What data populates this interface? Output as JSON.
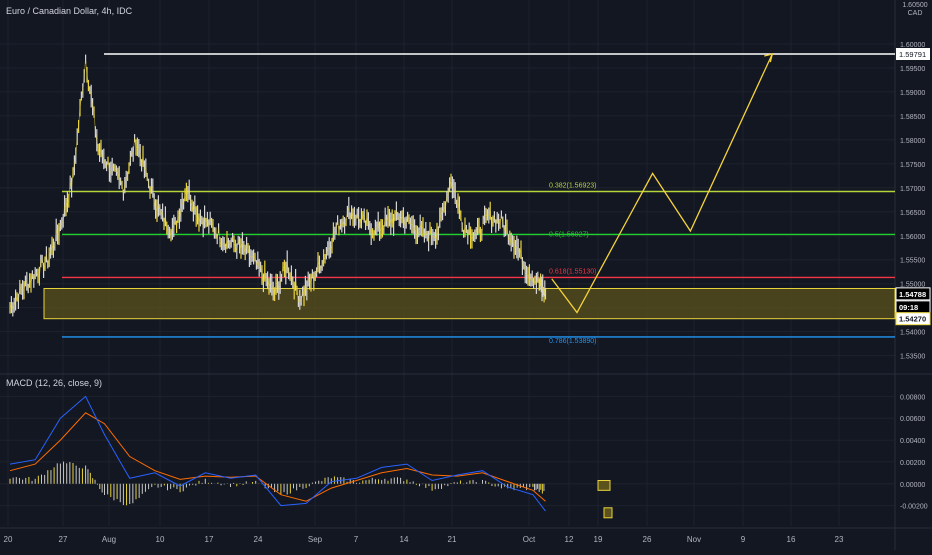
{
  "header": {
    "symbol_title": "Euro / Canadian Dollar, 4h, IDC",
    "scale_top": "1.60500",
    "currency": "CAD"
  },
  "macd": {
    "title": "MACD (12, 26, close, 9)"
  },
  "colors": {
    "background": "#131722",
    "grid": "#1e222d",
    "candle": "#d5d5d5",
    "candle_highlight": "#e8d43a",
    "zone_fill": "#5c531c",
    "zone_border": "#e8d43a",
    "red_level": "#f23645",
    "green_level": "#1fd12c",
    "lime_level": "#b6d43a",
    "blue_level": "#2196f3",
    "white_level": "#ffffff",
    "projection": "#f5d33b",
    "macd_line": "#2962ff",
    "signal_line": "#ff6d00",
    "histogram": "#c8c8c8",
    "histogram_highlight": "#e8d43a"
  },
  "chart_data": [
    {
      "type": "line",
      "name": "EUR/CAD 4h price",
      "ylim": [
        1.532,
        1.605
      ],
      "y_ticks": [
        "1.53500",
        "1.54000",
        "1.54500",
        "1.55000",
        "1.55500",
        "1.56000",
        "1.56500",
        "1.57000",
        "1.57500",
        "1.58000",
        "1.58500",
        "1.59000",
        "1.59500",
        "1.60000"
      ],
      "x_ticks": [
        "20",
        "27",
        "Aug",
        "10",
        "17",
        "24",
        "Sep",
        "7",
        "14",
        "21",
        "Oct",
        "12",
        "19",
        "26",
        "Nov",
        "9",
        "16",
        "23"
      ],
      "series": [
        {
          "x": [
            "Jul 20",
            "Jul 22",
            "Jul 24",
            "Jul 26",
            "Jul 28",
            "Jul 30",
            "Aug 1",
            "Aug 3",
            "Aug 5",
            "Aug 7",
            "Aug 9",
            "Aug 11",
            "Aug 13",
            "Aug 15",
            "Aug 17",
            "Aug 19",
            "Aug 21",
            "Aug 23",
            "Aug 25",
            "Aug 27",
            "Aug 29",
            "Aug 31",
            "Sep 2",
            "Sep 4",
            "Sep 6",
            "Sep 8",
            "Sep 10",
            "Sep 12",
            "Sep 14",
            "Sep 16",
            "Sep 18",
            "Sep 20",
            "Sep 22",
            "Sep 24",
            "Sep 26",
            "Sep 28",
            "Sep 30",
            "Oct 2",
            "Oct 4",
            "Oct 6",
            "Oct 8",
            "Oct 10",
            "Oct 12",
            "Oct 13"
          ],
          "values": [
            1.545,
            1.549,
            1.552,
            1.555,
            1.562,
            1.572,
            1.597,
            1.578,
            1.574,
            1.57,
            1.58,
            1.571,
            1.564,
            1.561,
            1.57,
            1.564,
            1.562,
            1.559,
            1.558,
            1.556,
            1.552,
            1.548,
            1.554,
            1.547,
            1.551,
            1.556,
            1.562,
            1.565,
            1.563,
            1.561,
            1.563,
            1.564,
            1.562,
            1.56,
            1.561,
            1.572,
            1.562,
            1.56,
            1.564,
            1.563,
            1.559,
            1.553,
            1.55,
            1.5479
          ]
        }
      ],
      "levels": [
        {
          "value": 1.59791,
          "label": "1.59791",
          "color": "white"
        },
        {
          "value": 1.56923,
          "label": "0.382(1.56923)",
          "color": "lime"
        },
        {
          "value": 1.56027,
          "label": "0.5(1.56027)",
          "color": "green"
        },
        {
          "value": 1.5513,
          "label": "0.618(1.55130)",
          "color": "red"
        },
        {
          "value": 1.5389,
          "label": "0.786(1.53890)",
          "color": "blue"
        }
      ],
      "zone": {
        "top": 1.549,
        "bottom": 1.5427
      },
      "price_tags": [
        "1.54788",
        "09:18",
        "1.54270"
      ],
      "projection": {
        "x": [
          "Oct 14",
          "Oct 18",
          "Oct 30",
          "Nov 5",
          "Nov 18"
        ],
        "values": [
          1.551,
          1.544,
          1.573,
          1.561,
          1.5979
        ]
      }
    },
    {
      "type": "bar",
      "name": "MACD (12, 26, close, 9)",
      "ylim": [
        -0.0035,
        0.0095
      ],
      "y_ticks": [
        "0.00800",
        "0.00600",
        "0.00400",
        "0.00200",
        "0.00000",
        "-0.00200"
      ],
      "x": [
        "Jul 20",
        "Jul 24",
        "Jul 28",
        "Aug 1",
        "Aug 4",
        "Aug 8",
        "Aug 12",
        "Aug 16",
        "Aug 20",
        "Aug 24",
        "Aug 28",
        "Sep 1",
        "Sep 5",
        "Sep 9",
        "Sep 13",
        "Sep 17",
        "Sep 21",
        "Sep 25",
        "Sep 29",
        "Oct 3",
        "Oct 7",
        "Oct 11",
        "Oct 13"
      ],
      "series": [
        {
          "name": "MACD",
          "values": [
            0.0018,
            0.0022,
            0.006,
            0.008,
            0.0045,
            0.0005,
            0.001,
            -0.0002,
            0.001,
            0.0005,
            0.0008,
            -0.002,
            -0.0018,
            0.0002,
            0.0005,
            0.0015,
            0.0018,
            0.0003,
            0.0008,
            0.0012,
            -0.0003,
            -0.001,
            -0.0025
          ]
        },
        {
          "name": "Signal",
          "values": [
            0.0012,
            0.0018,
            0.004,
            0.0065,
            0.0055,
            0.0025,
            0.0012,
            0.0004,
            0.0007,
            0.0006,
            0.0007,
            -0.001,
            -0.0016,
            -0.0004,
            0.0003,
            0.001,
            0.0014,
            0.0008,
            0.0007,
            0.001,
            0.0002,
            -0.0006,
            -0.0016
          ]
        },
        {
          "name": "Histogram",
          "values": [
            0.0006,
            0.0004,
            0.002,
            0.0015,
            -0.001,
            -0.002,
            -0.0002,
            -0.0006,
            0.0003,
            -0.0001,
            0.0001,
            -0.001,
            -0.0002,
            0.0006,
            0.0002,
            0.0005,
            0.0004,
            -0.0005,
            0.0001,
            0.0002,
            -0.0005,
            -0.0004,
            -0.0009
          ]
        }
      ]
    }
  ]
}
